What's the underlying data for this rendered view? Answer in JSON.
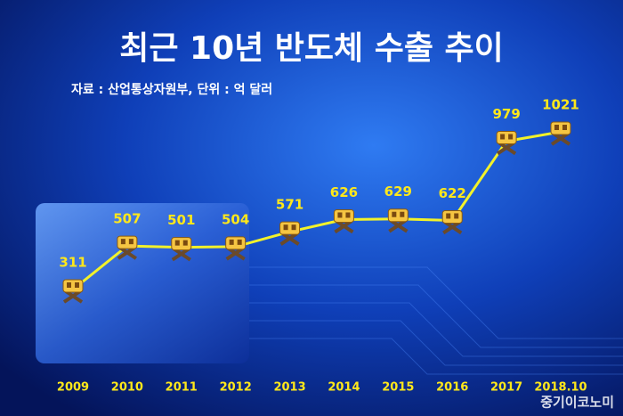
{
  "chart_data": {
    "type": "line",
    "title": "최근 10년 반도체 수출 추이",
    "subtitle": "자료 : 산업통상자원부, 단위 : 억 달러",
    "categories": [
      "2009",
      "2010",
      "2011",
      "2012",
      "2013",
      "2014",
      "2015",
      "2016",
      "2017",
      "2018.10"
    ],
    "values": [
      311,
      507,
      501,
      504,
      571,
      626,
      629,
      622,
      979,
      1021
    ],
    "color": "#f2f22a",
    "watermark": "중기이코노미"
  }
}
